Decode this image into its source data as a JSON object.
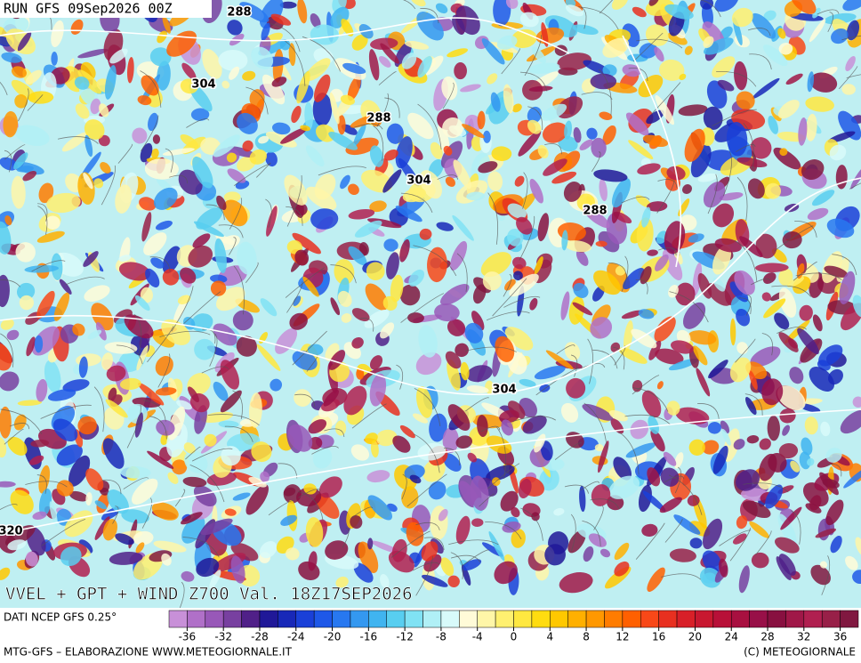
{
  "header": {
    "run": "RUN GFS 09Sep2026 00Z"
  },
  "contour_labels": [
    {
      "text": "288"
    },
    {
      "text": "304"
    },
    {
      "text": "288"
    },
    {
      "text": "304"
    },
    {
      "text": "288"
    },
    {
      "text": "304"
    },
    {
      "text": "320"
    }
  ],
  "map_title": "VVEL + GPT + WIND Z700 Val. 18Z17SEP2026",
  "source": "DATI NCEP GFS 0.25°",
  "colorbar": {
    "lim": [
      -38,
      38
    ],
    "ticks": [
      -36,
      -32,
      -28,
      -24,
      -20,
      -16,
      -12,
      -8,
      -4,
      0,
      4,
      8,
      12,
      16,
      20,
      24,
      28,
      32,
      36
    ],
    "colors": [
      "#c890d8",
      "#b070c8",
      "#9858b8",
      "#7840a0",
      "#502088",
      "#201898",
      "#1828b8",
      "#1a40d8",
      "#1e58e8",
      "#2878f0",
      "#3498f0",
      "#40b4f0",
      "#58cef0",
      "#80e2f4",
      "#b0f0f6",
      "#d8fafa",
      "#fffbd8",
      "#fff6a8",
      "#fff070",
      "#ffe840",
      "#ffdc10",
      "#ffc800",
      "#ffb000",
      "#ff9800",
      "#ff7c00",
      "#ff6000",
      "#f84818",
      "#e83020",
      "#d82028",
      "#c81830",
      "#b81038",
      "#a81040",
      "#981048",
      "#881040",
      "#a01848",
      "#b02050",
      "#982048",
      "#801840"
    ]
  },
  "footer": {
    "left": "MTG-GFS – ELABORAZIONE WWW.METEOGIORNALE.IT",
    "right": "(C) METEOGIORNALE"
  }
}
